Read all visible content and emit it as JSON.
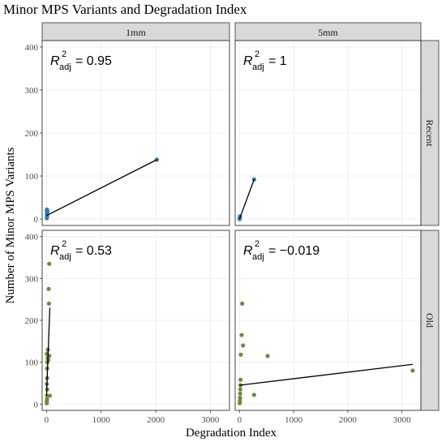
{
  "chart_data": {
    "type": "scatter",
    "title": "Minor MPS Variants and Degradation Index",
    "xlabel": "Degradation Index",
    "ylabel": "Number of Minor MPS Variants",
    "xlim": [
      -80,
      3350
    ],
    "ylim": [
      -15,
      415
    ],
    "x_ticks": [
      0,
      1000,
      2000,
      3000
    ],
    "y_ticks": [
      0,
      100,
      200,
      300,
      400
    ],
    "x_tick_labels": [
      "0",
      "1000",
      "2000",
      "3000"
    ],
    "y_tick_labels": [
      "0",
      "100",
      "200",
      "300",
      "400"
    ],
    "column_strips": [
      "1mm",
      "5mm"
    ],
    "row_strips": [
      "Recent",
      "Old"
    ],
    "grid": true,
    "colors": {
      "Recent": "#2b7bba",
      "Old": "#6a8d3c",
      "fit": "#000000",
      "strip": "#d9d9d9",
      "grid": "#ebebeb"
    },
    "panels": [
      {
        "column": "1mm",
        "row": "Recent",
        "r2_label": "= 0.95",
        "fit": [
          [
            0,
            8
          ],
          [
            2020,
            138
          ]
        ],
        "points": [
          [
            5,
            2
          ],
          [
            8,
            5
          ],
          [
            10,
            8
          ],
          [
            6,
            12
          ],
          [
            12,
            15
          ],
          [
            15,
            18
          ],
          [
            9,
            22
          ],
          [
            4,
            20
          ],
          [
            2020,
            138
          ]
        ]
      },
      {
        "column": "5mm",
        "row": "Recent",
        "r2_label": "= 1",
        "fit": [
          [
            0,
            0
          ],
          [
            270,
            92
          ]
        ],
        "points": [
          [
            2,
            0
          ],
          [
            5,
            3
          ],
          [
            8,
            6
          ],
          [
            270,
            92
          ]
        ]
      },
      {
        "column": "1mm",
        "row": "Old",
        "r2_label": "= 0.53",
        "fit": [
          [
            0,
            20
          ],
          [
            60,
            230
          ]
        ],
        "points": [
          [
            5,
            2
          ],
          [
            6,
            8
          ],
          [
            8,
            12
          ],
          [
            10,
            20
          ],
          [
            12,
            35
          ],
          [
            5,
            48
          ],
          [
            10,
            62
          ],
          [
            15,
            100
          ],
          [
            5,
            120
          ],
          [
            20,
            110
          ],
          [
            50,
            115
          ],
          [
            45,
            240
          ],
          [
            40,
            275
          ],
          [
            50,
            335
          ],
          [
            30,
            105
          ],
          [
            60,
            20
          ],
          [
            25,
            130
          ],
          [
            10,
            85
          ]
        ]
      },
      {
        "column": "5mm",
        "row": "Old",
        "r2_label": "= −0.019",
        "fit": [
          [
            0,
            45
          ],
          [
            3200,
            95
          ]
        ],
        "points": [
          [
            5,
            2
          ],
          [
            8,
            8
          ],
          [
            10,
            15
          ],
          [
            12,
            25
          ],
          [
            15,
            35
          ],
          [
            18,
            45
          ],
          [
            20,
            58
          ],
          [
            25,
            118
          ],
          [
            40,
            165
          ],
          [
            65,
            140
          ],
          [
            50,
            240
          ],
          [
            270,
            22
          ],
          [
            520,
            115
          ],
          [
            3200,
            80
          ]
        ]
      }
    ]
  }
}
